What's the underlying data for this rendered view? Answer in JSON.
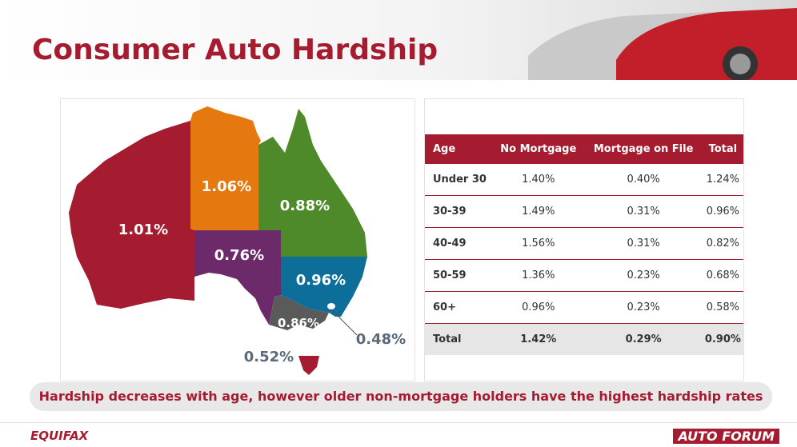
{
  "header": {
    "title": "Consumer Auto Hardship"
  },
  "map": {
    "labels": [
      {
        "region": "Western Australia",
        "text": "1.01%"
      },
      {
        "region": "Northern Territory",
        "text": "1.06%"
      },
      {
        "region": "Queensland",
        "text": "0.88%"
      },
      {
        "region": "South Australia",
        "text": "0.76%"
      },
      {
        "region": "New South Wales",
        "text": "0.96%"
      },
      {
        "region": "Victoria",
        "text": "0.86%"
      },
      {
        "region": "Australian Capital Territory",
        "text": "0.48%"
      },
      {
        "region": "Tasmania",
        "text": "0.52%"
      }
    ]
  },
  "table": {
    "columns": [
      "Age",
      "No Mortgage",
      "Mortgage on File",
      "Total"
    ],
    "rows": [
      [
        "Under 30",
        "1.40%",
        "0.40%",
        "1.24%"
      ],
      [
        "30-39",
        "1.49%",
        "0.31%",
        "0.96%"
      ],
      [
        "40-49",
        "1.56%",
        "0.31%",
        "0.82%"
      ],
      [
        "50-59",
        "1.36%",
        "0.23%",
        "0.68%"
      ],
      [
        "60+",
        "0.96%",
        "0.23%",
        "0.58%"
      ],
      [
        "Total",
        "1.42%",
        "0.29%",
        "0.90%"
      ]
    ]
  },
  "note": "Hardship decreases with age, however older non-mortgage holders have the highest hardship rates",
  "footer": {
    "left_logo": "EQUIFAX",
    "right_logo": "AUTO FORUM"
  }
}
